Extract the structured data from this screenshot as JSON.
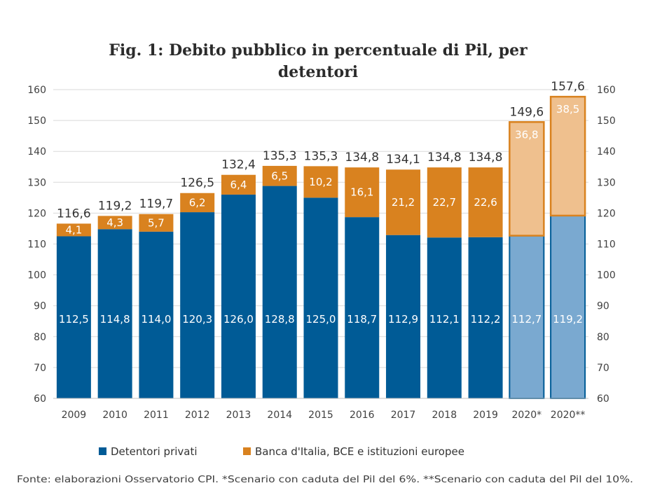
{
  "chart_data": {
    "type": "bar",
    "stacked": true,
    "title_line1": "Fig. 1: Debito pubblico in percentuale di Pil, per",
    "title_line2": "detentori",
    "categories": [
      "2009",
      "2010",
      "2011",
      "2012",
      "2013",
      "2014",
      "2015",
      "2016",
      "2017",
      "2018",
      "2019",
      "2020*",
      "2020**"
    ],
    "series": [
      {
        "name": "Detentori privati",
        "color": "#005b96",
        "color_scenario": "#7aa9d0",
        "values": [
          112.5,
          114.8,
          114.0,
          120.3,
          126.0,
          128.8,
          125.0,
          118.7,
          112.9,
          112.1,
          112.2,
          112.7,
          119.2
        ],
        "labels": [
          "112,5",
          "114,8",
          "114,0",
          "120,3",
          "126,0",
          "128,8",
          "125,0",
          "118,7",
          "112,9",
          "112,1",
          "112,2",
          "112,7",
          "119,2"
        ]
      },
      {
        "name": "Banca d'Italia, BCE e istituzioni europee",
        "color": "#d9821f",
        "color_scenario": "#efc08e",
        "values": [
          4.1,
          4.3,
          5.7,
          6.2,
          6.4,
          6.5,
          10.2,
          16.1,
          21.2,
          22.7,
          22.6,
          36.8,
          38.5
        ],
        "labels": [
          "4,1",
          "4,3",
          "5,7",
          "6,2",
          "6,4",
          "6,5",
          "10,2",
          "16,1",
          "21,2",
          "22,7",
          "22,6",
          "36,8",
          "38,5"
        ]
      }
    ],
    "totals": [
      "116,6",
      "119,2",
      "119,7",
      "126,5",
      "132,4",
      "135,3",
      "135,3",
      "134,8",
      "134,1",
      "134,8",
      "134,8",
      "149,6",
      "157,6"
    ],
    "scenario_categories": [
      "2020*",
      "2020**"
    ],
    "ylim": [
      60,
      160
    ],
    "yticks": [
      "60",
      "70",
      "80",
      "90",
      "100",
      "110",
      "120",
      "130",
      "140",
      "150",
      "160"
    ],
    "secondary_axis": true,
    "grid": true,
    "legend_position": "bottom",
    "source": "Fonte: elaborazioni Osservatorio CPI. *Scenario con caduta del Pil del 6%. **Scenario con caduta del Pil del 10%."
  }
}
